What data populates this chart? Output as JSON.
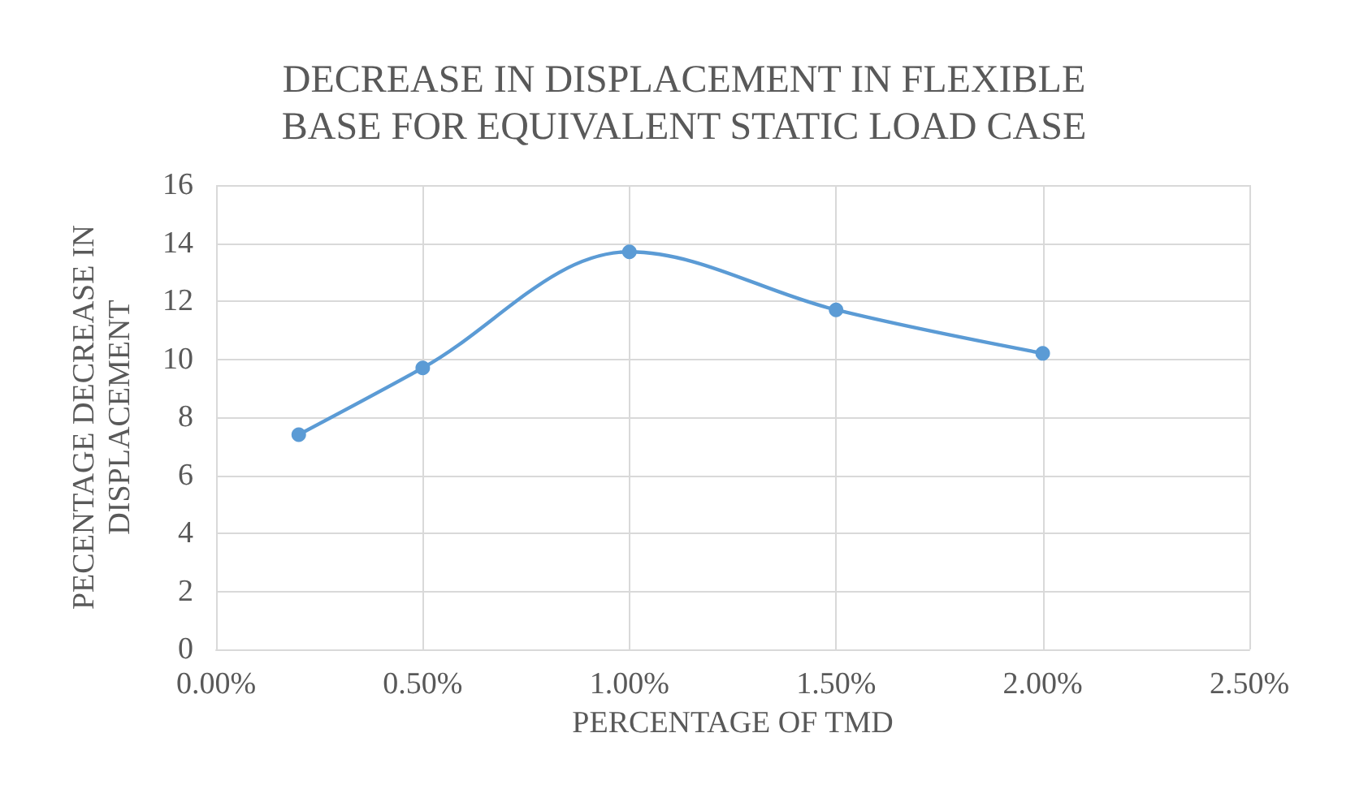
{
  "chart_data": {
    "type": "line",
    "title": "DECREASE IN DISPLACEMENT IN FLEXIBLE\nBASE FOR EQUIVALENT STATIC LOAD CASE",
    "xlabel": "PERCENTAGE OF TMD",
    "ylabel": "PECENTAGE DECREASE IN\nDISPLACEMENT",
    "x": [
      0.2,
      0.5,
      1.0,
      1.5,
      2.0
    ],
    "series": [
      {
        "color": "#5b9bd5",
        "values": [
          7.4,
          9.7,
          13.7,
          11.7,
          10.2
        ]
      }
    ],
    "xlim": [
      0,
      2.5
    ],
    "xticks": [
      {
        "value": 0,
        "label": "0.00%"
      },
      {
        "value": 0.5,
        "label": "0.50%"
      },
      {
        "value": 1,
        "label": "1.00%"
      },
      {
        "value": 1.5,
        "label": "1.50%"
      },
      {
        "value": 2,
        "label": "2.00%"
      },
      {
        "value": 2.5,
        "label": "2.50%"
      }
    ],
    "ylim": [
      0,
      16
    ],
    "yticks": [
      0,
      2,
      4,
      6,
      8,
      10,
      12,
      14,
      16
    ],
    "grid": true,
    "marker": "circle",
    "line_style": "solid"
  }
}
